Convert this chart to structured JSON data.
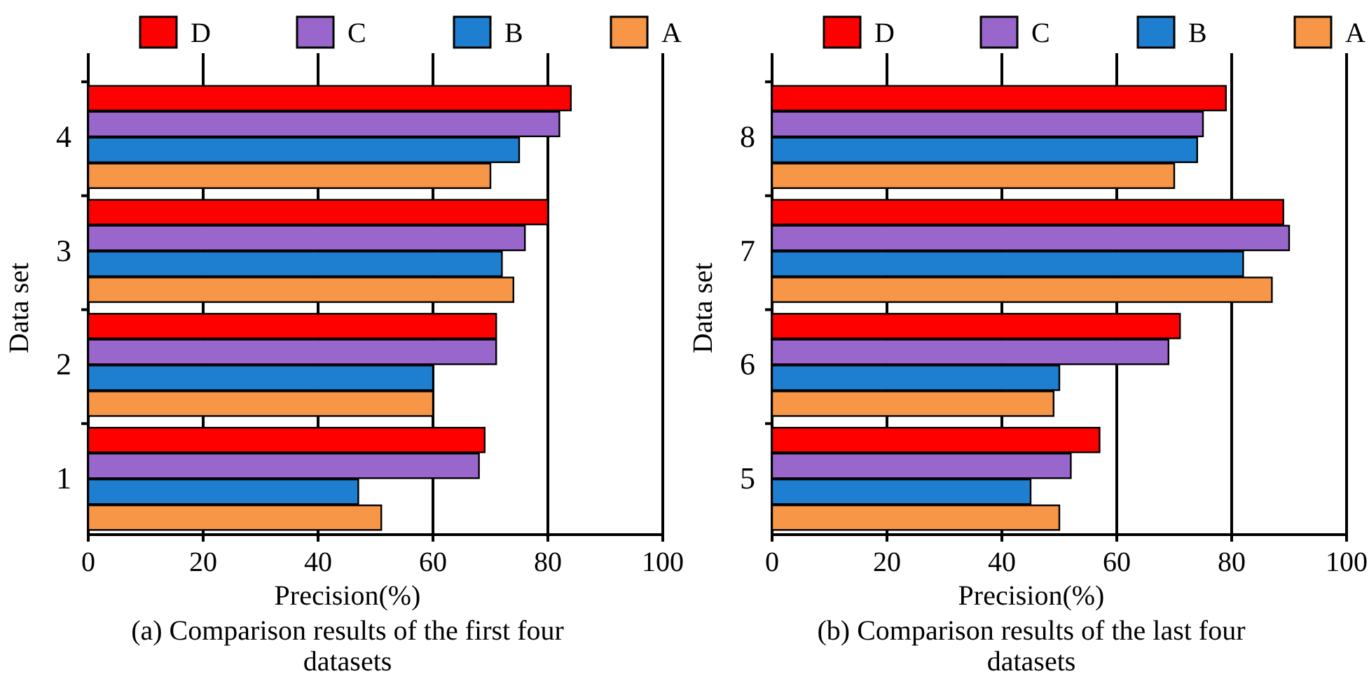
{
  "chart_data": [
    {
      "type": "bar",
      "orientation": "horizontal",
      "title": "(a) Comparison results of the first four datasets",
      "xlabel": "Precision(%)",
      "ylabel": "Data set",
      "categories": [
        "4",
        "3",
        "2",
        "1"
      ],
      "xlim": [
        0,
        100
      ],
      "xticks": [
        0,
        20,
        40,
        60,
        80,
        100
      ],
      "grid": "x",
      "legend": "top",
      "series": [
        {
          "name": "D",
          "color": "#ff0000",
          "values": [
            84,
            80,
            71,
            69
          ]
        },
        {
          "name": "C",
          "color": "#9966cc",
          "values": [
            82,
            76,
            71,
            68
          ]
        },
        {
          "name": "B",
          "color": "#1e7fd0",
          "values": [
            75,
            72,
            60,
            47
          ]
        },
        {
          "name": "A",
          "color": "#f79646",
          "values": [
            70,
            74,
            60,
            51
          ]
        }
      ]
    },
    {
      "type": "bar",
      "orientation": "horizontal",
      "title": "(b) Comparison results of the last four datasets",
      "xlabel": "Precision(%)",
      "ylabel": "Data set",
      "categories": [
        "8",
        "7",
        "6",
        "5"
      ],
      "xlim": [
        0,
        100
      ],
      "xticks": [
        0,
        20,
        40,
        60,
        80,
        100
      ],
      "grid": "x",
      "legend": "top",
      "series": [
        {
          "name": "D",
          "color": "#ff0000",
          "values": [
            79,
            89,
            71,
            57
          ]
        },
        {
          "name": "C",
          "color": "#9966cc",
          "values": [
            75,
            90,
            69,
            52
          ]
        },
        {
          "name": "B",
          "color": "#1e7fd0",
          "values": [
            74,
            82,
            50,
            45
          ]
        },
        {
          "name": "A",
          "color": "#f79646",
          "values": [
            70,
            87,
            49,
            50
          ]
        }
      ]
    }
  ]
}
